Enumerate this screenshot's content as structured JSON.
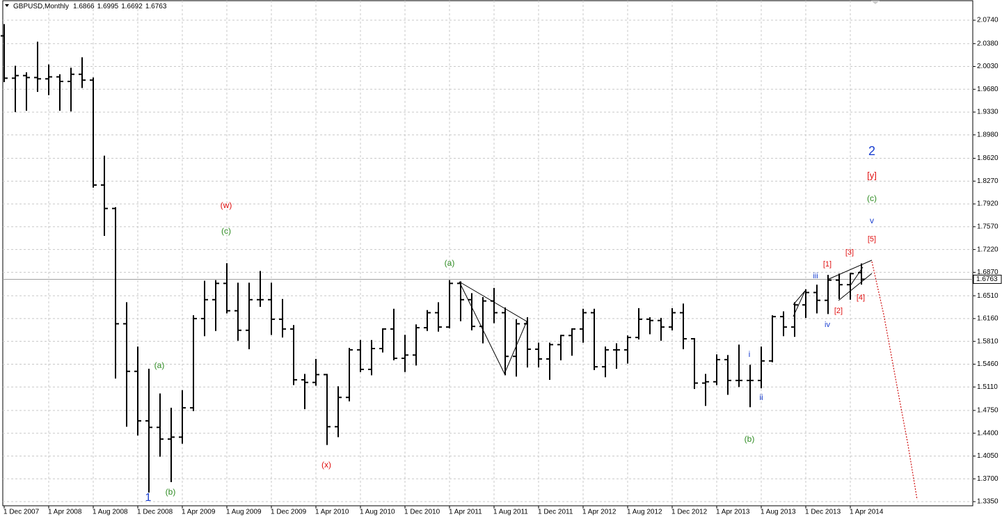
{
  "chart_data": {
    "type": "ohlc",
    "title": "GBPUSD,Monthly",
    "color": "#000000",
    "grid": true,
    "ylim": [
      1.3297,
      2.0922
    ],
    "yticks": [
      {
        "value": 2.074,
        "label": "2.0740"
      },
      {
        "value": 2.038,
        "label": "2.0380"
      },
      {
        "value": 2.003,
        "label": "2.0030"
      },
      {
        "value": 1.968,
        "label": "1.9680"
      },
      {
        "value": 1.933,
        "label": "1.9330"
      },
      {
        "value": 1.898,
        "label": "1.8980"
      },
      {
        "value": 1.862,
        "label": "1.8620"
      },
      {
        "value": 1.827,
        "label": "1.8270"
      },
      {
        "value": 1.792,
        "label": "1.7920"
      },
      {
        "value": 1.757,
        "label": "1.7570"
      },
      {
        "value": 1.722,
        "label": "1.7220"
      },
      {
        "value": 1.687,
        "label": "1.6870"
      },
      {
        "value": 1.651,
        "label": "1.6510"
      },
      {
        "value": 1.616,
        "label": "1.6160"
      },
      {
        "value": 1.581,
        "label": "1.5810"
      },
      {
        "value": 1.546,
        "label": "1.5460"
      },
      {
        "value": 1.511,
        "label": "1.5110"
      },
      {
        "value": 1.475,
        "label": "1.4750"
      },
      {
        "value": 1.44,
        "label": "1.4400"
      },
      {
        "value": 1.405,
        "label": "1.4050"
      },
      {
        "value": 1.37,
        "label": "1.3700"
      },
      {
        "value": 1.335,
        "label": "1.3350"
      }
    ],
    "categories": [
      "1 Dec 2007",
      null,
      null,
      null,
      "1 Apr 2008",
      null,
      null,
      null,
      "1 Aug 2008",
      null,
      null,
      null,
      "1 Dec 2008",
      null,
      null,
      null,
      "1 Apr 2009",
      null,
      null,
      null,
      "1 Aug 2009",
      null,
      null,
      null,
      "1 Dec 2009",
      null,
      null,
      null,
      "1 Apr 2010",
      null,
      null,
      null,
      "1 Aug 2010",
      null,
      null,
      null,
      "1 Dec 2010",
      null,
      null,
      null,
      "1 Apr 2011",
      null,
      null,
      null,
      "1 Aug 2011",
      null,
      null,
      null,
      "1 Dec 2011",
      null,
      null,
      null,
      "1 Apr 2012",
      null,
      null,
      null,
      "1 Aug 2012",
      null,
      null,
      null,
      "1 Dec 2012",
      null,
      null,
      null,
      "1 Apr 2013",
      null,
      null,
      null,
      "1 Aug 2013",
      null,
      null,
      null,
      "1 Dec 2013",
      null,
      null,
      null,
      "1 Apr 2014",
      null
    ],
    "open": [
      2.05,
      1.985,
      1.989,
      1.986,
      1.984,
      1.987,
      1.98,
      1.991,
      1.982,
      1.821,
      1.785,
      1.608,
      1.535,
      1.459,
      1.449,
      1.431,
      1.434,
      1.479,
      1.616,
      1.645,
      1.67,
      1.628,
      1.598,
      1.645,
      1.645,
      1.615,
      1.6,
      1.522,
      1.518,
      1.53,
      1.45,
      1.495,
      1.568,
      1.538,
      1.57,
      1.6,
      1.555,
      1.56,
      1.602,
      1.625,
      1.603,
      1.67,
      1.645,
      1.604,
      1.643,
      1.625,
      1.558,
      1.608,
      1.569,
      1.554,
      1.576,
      1.59,
      1.6,
      1.625,
      1.542,
      1.568,
      1.568,
      1.587,
      1.615,
      1.613,
      1.603,
      1.625,
      1.585,
      1.517,
      1.519,
      1.553,
      1.521,
      1.521,
      1.521,
      1.551,
      1.619,
      1.603,
      1.637,
      1.656,
      1.644,
      1.675,
      1.668,
      1.6866
    ],
    "high": [
      2.067,
      2.003,
      1.993,
      2.04,
      2.005,
      1.99,
      2.0,
      2.016,
      1.985,
      1.865,
      1.786,
      1.64,
      1.572,
      1.538,
      1.5,
      1.478,
      1.505,
      1.62,
      1.673,
      1.674,
      1.7,
      1.67,
      1.67,
      1.688,
      1.67,
      1.645,
      1.605,
      1.53,
      1.553,
      1.53,
      1.511,
      1.57,
      1.582,
      1.582,
      1.6,
      1.63,
      1.59,
      1.606,
      1.628,
      1.64,
      1.674,
      1.672,
      1.654,
      1.648,
      1.662,
      1.632,
      1.614,
      1.617,
      1.578,
      1.578,
      1.59,
      1.6,
      1.63,
      1.63,
      1.572,
      1.577,
      1.589,
      1.631,
      1.617,
      1.616,
      1.631,
      1.638,
      1.585,
      1.53,
      1.56,
      1.559,
      1.575,
      1.544,
      1.572,
      1.62,
      1.626,
      1.64,
      1.66,
      1.667,
      1.682,
      1.684,
      1.685,
      1.6995
    ],
    "low": [
      1.98,
      1.934,
      1.936,
      1.965,
      1.96,
      1.936,
      1.935,
      1.971,
      1.818,
      1.744,
      1.525,
      1.451,
      1.4375,
      1.35,
      1.405,
      1.366,
      1.425,
      1.475,
      1.59,
      1.598,
      1.625,
      1.583,
      1.57,
      1.635,
      1.592,
      1.588,
      1.515,
      1.478,
      1.514,
      1.423,
      1.435,
      1.49,
      1.535,
      1.53,
      1.565,
      1.553,
      1.535,
      1.545,
      1.598,
      1.597,
      1.602,
      1.613,
      1.599,
      1.579,
      1.61,
      1.53,
      1.528,
      1.542,
      1.542,
      1.523,
      1.553,
      1.56,
      1.58,
      1.538,
      1.527,
      1.54,
      1.548,
      1.585,
      1.593,
      1.583,
      1.599,
      1.57,
      1.509,
      1.483,
      1.515,
      1.5,
      1.512,
      1.481,
      1.51,
      1.55,
      1.59,
      1.589,
      1.618,
      1.625,
      1.624,
      1.647,
      1.646,
      1.6692
    ],
    "close": [
      1.985,
      1.989,
      1.986,
      1.984,
      1.987,
      1.98,
      1.991,
      1.982,
      1.821,
      1.785,
      1.608,
      1.535,
      1.459,
      1.449,
      1.431,
      1.434,
      1.479,
      1.616,
      1.645,
      1.67,
      1.628,
      1.598,
      1.645,
      1.645,
      1.615,
      1.6,
      1.522,
      1.518,
      1.53,
      1.45,
      1.495,
      1.568,
      1.538,
      1.57,
      1.6,
      1.555,
      1.56,
      1.602,
      1.625,
      1.603,
      1.67,
      1.645,
      1.604,
      1.643,
      1.625,
      1.558,
      1.608,
      1.569,
      1.554,
      1.576,
      1.59,
      1.6,
      1.625,
      1.542,
      1.568,
      1.568,
      1.587,
      1.615,
      1.613,
      1.603,
      1.625,
      1.585,
      1.517,
      1.519,
      1.553,
      1.521,
      1.521,
      1.521,
      1.551,
      1.619,
      1.603,
      1.637,
      1.656,
      1.644,
      1.675,
      1.668,
      1.685,
      1.6763
    ],
    "annotations": [
      {
        "text": "1",
        "color": "#1a3fd0"
      },
      {
        "text": "(b)",
        "color": "#2e8b22"
      },
      {
        "text": "(a)",
        "color": "#2e8b22"
      },
      {
        "text": "(c)",
        "color": "#2e8b22"
      },
      {
        "text": "(w)",
        "color": "#e01010"
      },
      {
        "text": "(x)",
        "color": "#e01010"
      },
      {
        "text": "(a)",
        "color": "#2e8b22"
      },
      {
        "text": "(b)",
        "color": "#2e8b22"
      },
      {
        "text": "i",
        "color": "#1a3fd0"
      },
      {
        "text": "ii",
        "color": "#1a3fd0"
      },
      {
        "text": "iii",
        "color": "#1a3fd0"
      },
      {
        "text": "iv",
        "color": "#1a3fd0"
      },
      {
        "text": "[1]",
        "color": "#e01010"
      },
      {
        "text": "[2]",
        "color": "#e01010"
      },
      {
        "text": "[3]",
        "color": "#e01010"
      },
      {
        "text": "[4]",
        "color": "#e01010"
      },
      {
        "text": "[5]",
        "color": "#e01010"
      },
      {
        "text": "v",
        "color": "#1a3fd0"
      },
      {
        "text": "(c)",
        "color": "#2e8b22"
      },
      {
        "text": "[y]",
        "color": "#e01010"
      },
      {
        "text": "2",
        "color": "#1a3fd0"
      }
    ]
  }
}
